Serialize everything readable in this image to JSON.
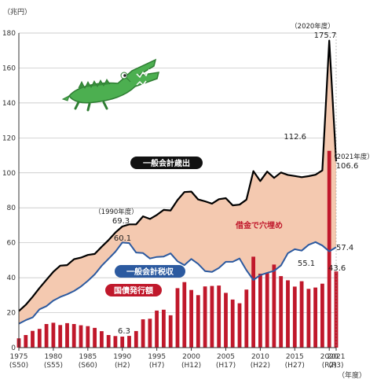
{
  "chart_data": {
    "type": "bar+line+area",
    "unit_label": "（兆円）",
    "x_unit_label": "（年度）",
    "ylim": [
      0,
      180
    ],
    "yticks": [
      0,
      20,
      40,
      60,
      80,
      100,
      120,
      140,
      160,
      180
    ],
    "xlim": [
      1975,
      2021
    ],
    "xticks": [
      {
        "year": 1975,
        "label": "1975",
        "sub": "(S50)"
      },
      {
        "year": 1980,
        "label": "1980",
        "sub": "(S55)"
      },
      {
        "year": 1985,
        "label": "1985",
        "sub": "(S60)"
      },
      {
        "year": 1990,
        "label": "1990",
        "sub": "(H2)"
      },
      {
        "year": 1995,
        "label": "1995",
        "sub": "(H7)"
      },
      {
        "year": 2000,
        "label": "2000",
        "sub": "(H12)"
      },
      {
        "year": 2005,
        "label": "2005",
        "sub": "(H17)"
      },
      {
        "year": 2010,
        "label": "2010",
        "sub": "(H22)"
      },
      {
        "year": 2015,
        "label": "2015",
        "sub": "(H27)"
      },
      {
        "year": 2020,
        "label": "2020",
        "sub": "(R2)"
      },
      {
        "year": 2021,
        "label": "2021",
        "sub": "(R3)"
      }
    ],
    "years": [
      1975,
      1976,
      1977,
      1978,
      1979,
      1980,
      1981,
      1982,
      1983,
      1984,
      1985,
      1986,
      1987,
      1988,
      1989,
      1990,
      1991,
      1992,
      1993,
      1994,
      1995,
      1996,
      1997,
      1998,
      1999,
      2000,
      2001,
      2002,
      2003,
      2004,
      2005,
      2006,
      2007,
      2008,
      2009,
      2010,
      2011,
      2012,
      2013,
      2014,
      2015,
      2016,
      2017,
      2018,
      2019,
      2020,
      2021
    ],
    "series": [
      {
        "name": "一般会計歳出",
        "type": "line",
        "color": "#000000",
        "values": [
          20.9,
          24.5,
          29.1,
          34.1,
          38.8,
          43.4,
          46.9,
          47.2,
          50.6,
          51.5,
          53.0,
          53.6,
          57.7,
          61.5,
          65.9,
          69.3,
          70.5,
          70.5,
          75.1,
          73.6,
          75.9,
          78.8,
          78.5,
          84.4,
          89.0,
          89.3,
          84.8,
          83.7,
          82.4,
          84.9,
          85.5,
          81.4,
          81.8,
          84.7,
          101.0,
          95.3,
          100.7,
          97.1,
          100.2,
          98.8,
          98.2,
          97.5,
          98.1,
          98.9,
          101.4,
          175.7,
          106.6
        ]
      },
      {
        "name": "一般会計税収",
        "type": "line",
        "color": "#2c5aa0",
        "values": [
          13.7,
          15.7,
          17.3,
          21.9,
          23.7,
          26.9,
          29.0,
          30.5,
          32.4,
          34.9,
          38.2,
          41.9,
          46.8,
          50.8,
          54.9,
          60.1,
          59.8,
          54.4,
          54.1,
          51.0,
          51.9,
          52.1,
          53.9,
          49.4,
          47.2,
          50.7,
          47.9,
          43.8,
          43.3,
          45.6,
          49.1,
          49.1,
          51.0,
          44.3,
          38.7,
          41.5,
          42.8,
          43.9,
          47.0,
          54.0,
          56.3,
          55.5,
          58.8,
          60.4,
          58.4,
          55.1,
          57.4
        ]
      },
      {
        "name": "国債発行額",
        "type": "bar",
        "color": "#c0182b",
        "values": [
          5.3,
          7.2,
          9.6,
          10.7,
          13.5,
          14.2,
          12.9,
          14.0,
          13.5,
          12.8,
          12.3,
          11.3,
          9.4,
          7.2,
          6.6,
          6.3,
          6.7,
          9.5,
          16.2,
          16.5,
          21.2,
          21.7,
          18.5,
          34.0,
          37.5,
          33.0,
          30.0,
          35.0,
          35.3,
          35.5,
          31.3,
          27.5,
          25.4,
          33.2,
          52.0,
          42.3,
          42.8,
          47.5,
          40.9,
          38.5,
          34.9,
          38.0,
          33.6,
          34.4,
          36.6,
          112.6,
          43.6
        ]
      }
    ],
    "area": {
      "name": "借金で穴埋め",
      "between": [
        "一般会計歳出",
        "一般会計税収"
      ],
      "color": "#f4c9b0"
    },
    "annotations": [
      {
        "year_label": "（1990年度）",
        "value_text": "69.3"
      },
      {
        "value_text": "60.1"
      },
      {
        "value_text": "6.3"
      },
      {
        "year_label": "（2020年度）",
        "value_text": "175.7"
      },
      {
        "value_text": "112.6"
      },
      {
        "year_label": "（2021年度）",
        "value_text": "106.6"
      },
      {
        "value_text": "55.1"
      },
      {
        "value_text": "57.4"
      },
      {
        "value_text": "43.6"
      }
    ],
    "gridlines": "horizontal"
  },
  "colors": {
    "expenditure": "#000000",
    "tax": "#2c5aa0",
    "bonds": "#c0182b",
    "gap_fill": "#f4c9b0",
    "grid": "#bdbdbd"
  },
  "illustration": "crocodile-icon"
}
